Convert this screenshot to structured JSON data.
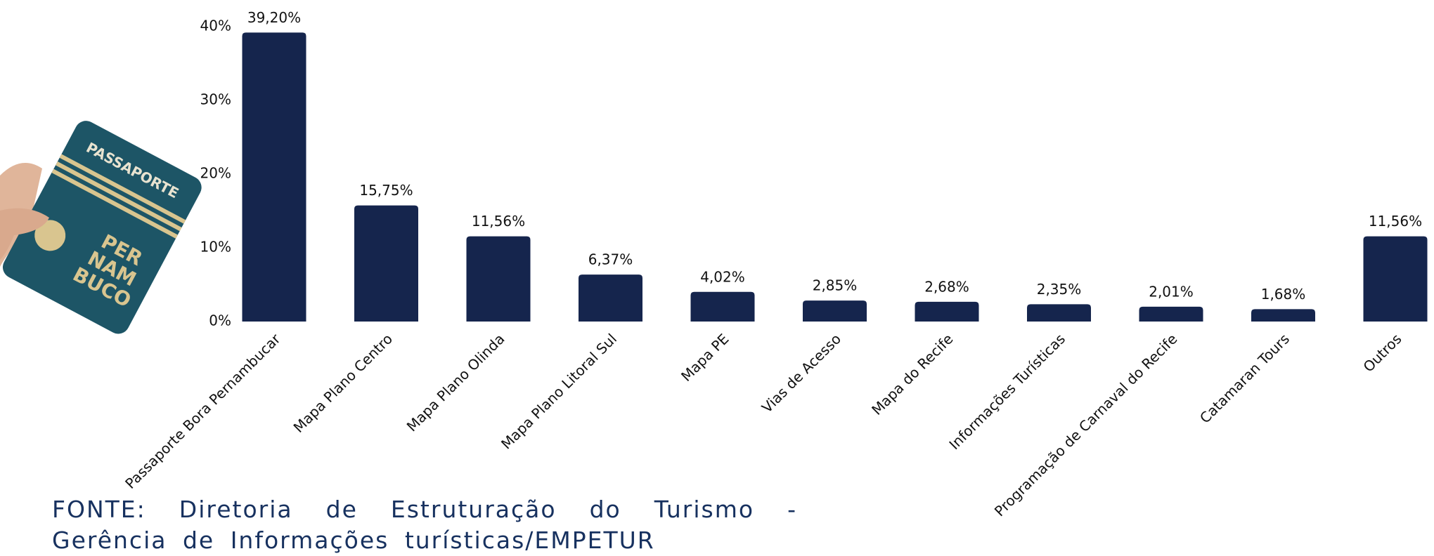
{
  "chart_data": {
    "type": "bar",
    "categories": [
      "Passaporte Bora Pernambucar",
      "Mapa Plano Centro",
      "Mapa Plano Olinda",
      "Mapa Plano Litoral Sul",
      "Mapa PE",
      "Vias de Acesso",
      "Mapa do Recife",
      "Informações Turísticas",
      "Programação de Carnaval do Recife",
      "Catamaran Tours",
      "Outros"
    ],
    "values": [
      39.2,
      15.75,
      11.56,
      6.37,
      4.02,
      2.85,
      2.68,
      2.35,
      2.01,
      1.68,
      11.56
    ],
    "value_labels": [
      "39,20%",
      "15,75%",
      "11,56%",
      "6,37%",
      "4,02%",
      "2,85%",
      "2,68%",
      "2,35%",
      "2,01%",
      "1,68%",
      "11,56%"
    ],
    "color": "#15254d",
    "ylim": [
      0,
      40
    ],
    "yticks": [
      {
        "value": 0,
        "label": "0%"
      },
      {
        "value": 10,
        "label": "10%"
      },
      {
        "value": 20,
        "label": "20%"
      },
      {
        "value": 30,
        "label": "30%"
      },
      {
        "value": 40,
        "label": "40%"
      }
    ],
    "grid": false
  },
  "footer": {
    "source": "FONTE: Diretoria de Estruturação do Turismo - Gerência de Informações turísticas/EMPETUR"
  },
  "illustration": {
    "cover_title": "PASSAPORTE",
    "emblem": [
      "PER",
      "NAM",
      "BUCO"
    ]
  }
}
